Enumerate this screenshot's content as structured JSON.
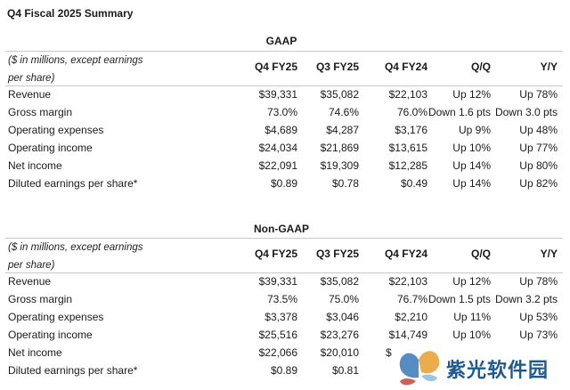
{
  "title": "Q4 Fiscal 2025 Summary",
  "columns": [
    "Q4 FY25",
    "Q3 FY25",
    "Q4 FY24",
    "Q/Q",
    "Y/Y"
  ],
  "note": "($ in millions, except earnings per share)",
  "gaap": {
    "heading": "GAAP",
    "rows": [
      {
        "label": "Revenue",
        "q4fy25": "$39,331",
        "q3fy25": "$35,082",
        "q4fy24": "$22,103",
        "qq": "Up 12%",
        "yy": "Up 78%"
      },
      {
        "label": "Gross margin",
        "q4fy25": "73.0%",
        "q3fy25": "74.6%",
        "q4fy24": "76.0%",
        "qq": "Down 1.6 pts",
        "yy": "Down 3.0 pts"
      },
      {
        "label": "Operating expenses",
        "q4fy25": "$4,689",
        "q3fy25": "$4,287",
        "q4fy24": "$3,176",
        "qq": "Up 9%",
        "yy": "Up 48%"
      },
      {
        "label": "Operating income",
        "q4fy25": "$24,034",
        "q3fy25": "$21,869",
        "q4fy24": "$13,615",
        "qq": "Up 10%",
        "yy": "Up 77%"
      },
      {
        "label": "Net income",
        "q4fy25": "$22,091",
        "q3fy25": "$19,309",
        "q4fy24": "$12,285",
        "qq": "Up 14%",
        "yy": "Up 80%"
      },
      {
        "label": "Diluted earnings per share*",
        "q4fy25": "$0.89",
        "q3fy25": "$0.78",
        "q4fy24": "$0.49",
        "qq": "Up 14%",
        "yy": "Up 82%"
      }
    ]
  },
  "nongaap": {
    "heading": "Non-GAAP",
    "rows": [
      {
        "label": "Revenue",
        "q4fy25": "$39,331",
        "q3fy25": "$35,082",
        "q4fy24": "$22,103",
        "qq": "Up 12%",
        "yy": "Up 78%"
      },
      {
        "label": "Gross margin",
        "q4fy25": "73.5%",
        "q3fy25": "75.0%",
        "q4fy24": "76.7%",
        "qq": "Down 1.5 pts",
        "yy": "Down 3.2 pts"
      },
      {
        "label": "Operating expenses",
        "q4fy25": "$3,378",
        "q3fy25": "$3,046",
        "q4fy24": "$2,210",
        "qq": "Up 11%",
        "yy": "Up 53%"
      },
      {
        "label": "Operating income",
        "q4fy25": "$25,516",
        "q3fy25": "$23,276",
        "q4fy24": "$14,749",
        "qq": "Up 10%",
        "yy": "Up 73%"
      },
      {
        "label": "Net income",
        "q4fy25": "$22,066",
        "q3fy25": "$20,010",
        "q4fy24": "$",
        "qq": "",
        "yy": ""
      },
      {
        "label": "Diluted earnings per share*",
        "q4fy25": "$0.89",
        "q3fy25": "$0.81",
        "q4fy24": "",
        "qq": "",
        "yy": ""
      }
    ]
  },
  "watermark": {
    "text": "紫光软件园",
    "logo_icon": "butterfly-logo-icon"
  },
  "colors": {
    "text": "#1a1a1a",
    "rule": "#c9c9c9",
    "watermark_text": "#1e5a8f"
  }
}
